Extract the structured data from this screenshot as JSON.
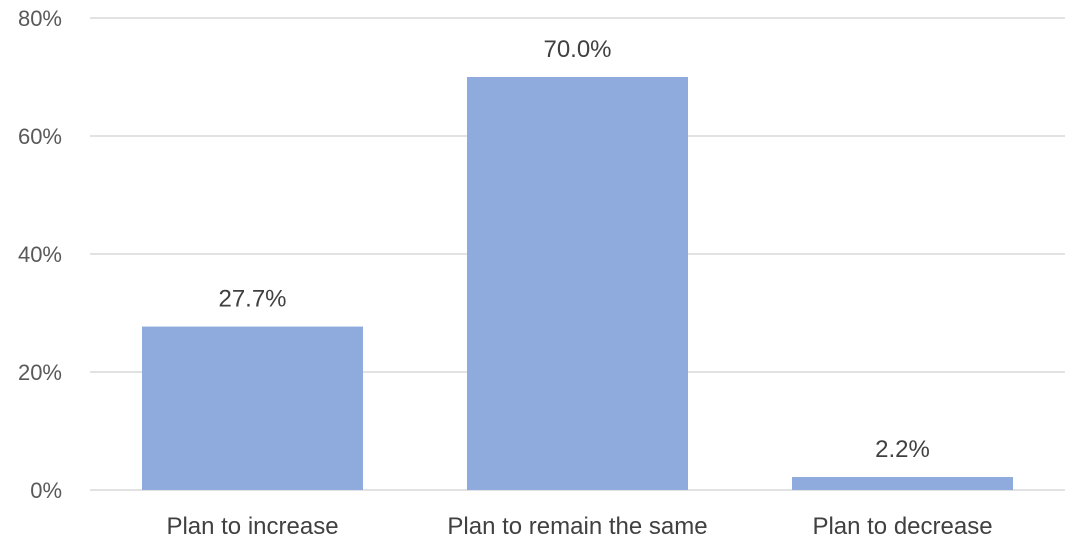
{
  "chart_data": {
    "type": "bar",
    "categories": [
      "Plan to increase",
      "Plan to remain the same",
      "Plan to decrease"
    ],
    "values": [
      27.7,
      70.0,
      2.2
    ],
    "data_labels": [
      "27.7%",
      "70.0%",
      "2.2%"
    ],
    "yticks": [
      "0%",
      "20%",
      "40%",
      "60%",
      "80%"
    ],
    "ylim": [
      0,
      80
    ],
    "grid": true,
    "bar_color": "#8faadc",
    "title": "",
    "xlabel": "",
    "ylabel": ""
  }
}
